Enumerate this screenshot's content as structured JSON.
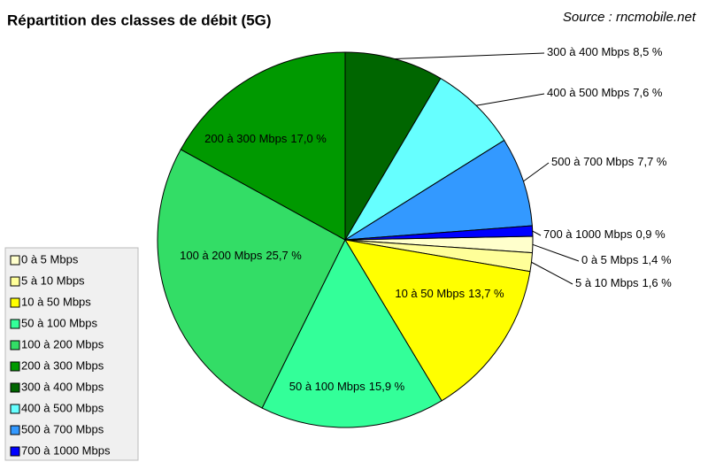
{
  "chart_data": {
    "type": "pie",
    "title": "Répartition des classes de débit (5G)",
    "source": "Source : rncmobile.net",
    "categories": [
      "0 à 5 Mbps",
      "5 à 10 Mbps",
      "10 à 50 Mbps",
      "50 à 100 Mbps",
      "100 à 200 Mbps",
      "200 à 300 Mbps",
      "300 à 400 Mbps",
      "400 à 500 Mbps",
      "500 à 700 Mbps",
      "700 à 1000 Mbps"
    ],
    "values": [
      1.4,
      1.6,
      13.7,
      15.9,
      25.7,
      17.0,
      8.5,
      7.6,
      7.7,
      0.9
    ],
    "value_labels": [
      "1,4 %",
      "1,6 %",
      "13,7 %",
      "15,9 %",
      "25,7 %",
      "17,0 %",
      "8,5 %",
      "7,6 %",
      "7,7 %",
      "0,9 %"
    ],
    "colors": [
      "#ffffcc",
      "#ffff99",
      "#ffff00",
      "#33ff99",
      "#33dd66",
      "#009900",
      "#006600",
      "#66ffff",
      "#3399ff",
      "#0000ff"
    ],
    "legend": "left"
  }
}
